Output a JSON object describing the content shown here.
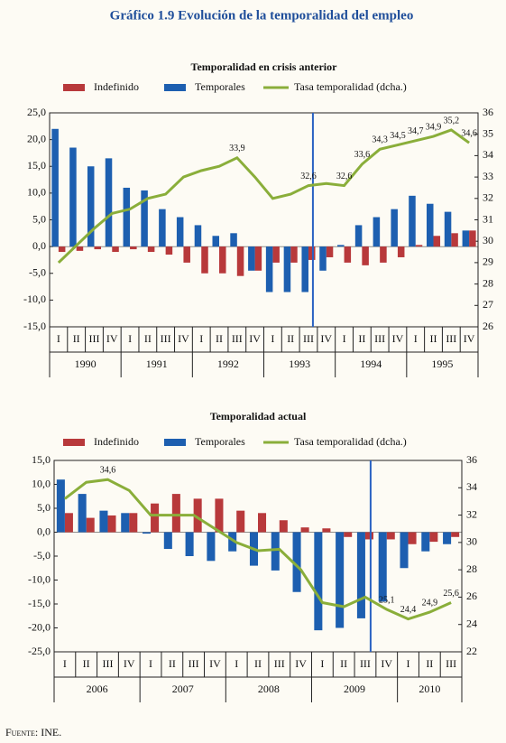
{
  "title": "Gráfico 1.9 Evolución de la temporalidad del empleo",
  "source": "Fuente: INE.",
  "chart_data": [
    {
      "type": "bar",
      "title": "Temporalidad en crisis anterior",
      "categories": [
        "I",
        "II",
        "III",
        "IV",
        "I",
        "II",
        "III",
        "IV",
        "I",
        "II",
        "III",
        "IV",
        "I",
        "II",
        "III",
        "IV",
        "I",
        "II",
        "III",
        "IV",
        "I",
        "II",
        "III",
        "IV"
      ],
      "years": [
        "1990",
        "1990",
        "1990",
        "1990",
        "1991",
        "1991",
        "1991",
        "1991",
        "1992",
        "1992",
        "1992",
        "1992",
        "1993",
        "1993",
        "1993",
        "1993",
        "1994",
        "1994",
        "1994",
        "1994",
        "1995",
        "1995",
        "1995",
        "1995"
      ],
      "series": [
        {
          "name": "Indefinido",
          "color": "#b8393b",
          "values": [
            -1,
            -0.8,
            -0.5,
            -1,
            -0.5,
            -1,
            -1.5,
            -3,
            -5,
            -5,
            -5.5,
            -4.5,
            -3,
            -3,
            -2.5,
            -2,
            -3,
            -3.5,
            -3,
            -2,
            0.3,
            2,
            2.5,
            3
          ]
        },
        {
          "name": "Temporales",
          "color": "#1d5fb0",
          "values": [
            22,
            18.5,
            15,
            16.5,
            11,
            10.5,
            7,
            5.5,
            4,
            2,
            2.5,
            -4.5,
            -8.5,
            -8.5,
            -8.5,
            -4.5,
            0.3,
            4,
            5.5,
            7,
            9.5,
            8,
            6.5,
            3
          ]
        },
        {
          "name": "Tasa temporalidad (dcha.)",
          "color": "#8aae3a",
          "type": "line",
          "axis": "y2",
          "values": [
            29.0,
            29.8,
            30.6,
            31.3,
            31.5,
            32.0,
            32.2,
            33.0,
            33.3,
            33.5,
            33.9,
            33.0,
            32.0,
            32.2,
            32.6,
            32.7,
            32.6,
            33.6,
            34.3,
            34.5,
            34.7,
            34.9,
            35.2,
            34.6
          ],
          "value_labels": [
            null,
            null,
            null,
            null,
            null,
            null,
            null,
            null,
            null,
            null,
            "33,9",
            null,
            null,
            null,
            "32,6",
            null,
            "32,6",
            "33,6",
            "34,3",
            "34,5",
            "34,7",
            "34,9",
            "35,2",
            "34,6"
          ]
        }
      ],
      "ylim": [
        -15,
        25
      ],
      "yticks": [
        {
          "value": -15,
          "label": "-15,0"
        },
        {
          "value": -10,
          "label": "-10,0"
        },
        {
          "value": -5,
          "label": "-5,0"
        },
        {
          "value": 0,
          "label": "0,0"
        },
        {
          "value": 5,
          "label": "5,0"
        },
        {
          "value": 10,
          "label": "10,0"
        },
        {
          "value": 15,
          "label": "15,0"
        },
        {
          "value": 20,
          "label": "20,0"
        },
        {
          "value": 25,
          "label": "25,0"
        }
      ],
      "y2lim": [
        26,
        36
      ],
      "y2ticks": [
        26,
        27,
        28,
        29,
        30,
        31,
        32,
        33,
        34,
        35,
        36
      ],
      "grid": false
    },
    {
      "type": "bar",
      "title": "Temporalidad actual",
      "categories": [
        "I",
        "II",
        "III",
        "IV",
        "I",
        "II",
        "III",
        "IV",
        "I",
        "II",
        "III",
        "IV",
        "I",
        "II",
        "III",
        "IV",
        "I",
        "II",
        "III"
      ],
      "years": [
        "2006",
        "2006",
        "2006",
        "2006",
        "2007",
        "2007",
        "2007",
        "2007",
        "2008",
        "2008",
        "2008",
        "2008",
        "2009",
        "2009",
        "2009",
        "2009",
        "2010",
        "2010",
        "2010"
      ],
      "series": [
        {
          "name": "Indefinido",
          "color": "#b8393b",
          "values": [
            4,
            3,
            3.5,
            4,
            6,
            8,
            7,
            7,
            4.5,
            4,
            2.5,
            1,
            0.8,
            -1,
            -1.5,
            -1.5,
            -2.5,
            -2,
            -1
          ]
        },
        {
          "name": "Temporales",
          "color": "#1d5fb0",
          "values": [
            11,
            8,
            4.5,
            4,
            -0.3,
            -3.5,
            -5,
            -6,
            -4,
            -7,
            -8,
            -12.5,
            -20.5,
            -20,
            -18,
            -14.5,
            -7.5,
            -4,
            -2.5
          ]
        },
        {
          "name": "Tasa temporalidad (dcha.)",
          "color": "#8aae3a",
          "type": "line",
          "axis": "y2",
          "values": [
            33.2,
            34.4,
            34.6,
            33.8,
            32.0,
            32.0,
            32.0,
            31.0,
            30.0,
            29.4,
            29.5,
            28.0,
            25.6,
            25.3,
            26.0,
            25.1,
            24.4,
            24.9,
            25.6
          ],
          "value_labels": [
            null,
            null,
            "34,6",
            null,
            null,
            null,
            null,
            null,
            null,
            null,
            null,
            null,
            null,
            null,
            null,
            "25,1",
            "24,4",
            "24,9",
            "25,6"
          ]
        }
      ],
      "ylim": [
        -25,
        15
      ],
      "yticks": [
        {
          "value": -25,
          "label": "-25,0"
        },
        {
          "value": -20,
          "label": "-20,0"
        },
        {
          "value": -15,
          "label": "-15,0"
        },
        {
          "value": -10,
          "label": "-10,0"
        },
        {
          "value": -5,
          "label": "-5,0"
        },
        {
          "value": 0,
          "label": "0,0"
        },
        {
          "value": 5,
          "label": "5,0"
        },
        {
          "value": 10,
          "label": "10,0"
        },
        {
          "value": 15,
          "label": "15,0"
        }
      ],
      "y2lim": [
        22,
        36
      ],
      "y2ticks": [
        22,
        24,
        26,
        28,
        30,
        32,
        34,
        36
      ],
      "grid": false
    }
  ]
}
